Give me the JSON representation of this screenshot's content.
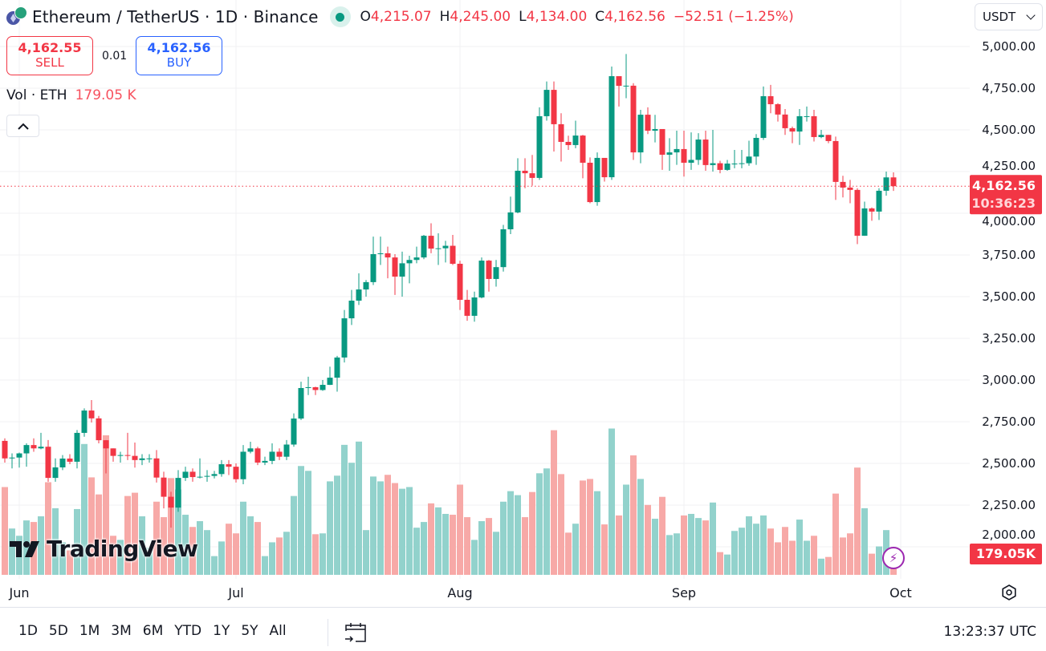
{
  "header": {
    "title": "Ethereum / TetherUS · 1D · Binance",
    "symbol_icon": "eth-usdt-icon",
    "status_icon": "market-open-dot",
    "ohlc": [
      {
        "key": "O",
        "value": "4,215.07"
      },
      {
        "key": "H",
        "value": "4,245.00"
      },
      {
        "key": "L",
        "value": "4,134.00"
      },
      {
        "key": "C",
        "value": "4,162.56"
      }
    ],
    "change": "−52.51 (−1.25%)"
  },
  "trade": {
    "sell_price": "4,162.55",
    "sell_label": "SELL",
    "spread": "0.01",
    "buy_price": "4,162.56",
    "buy_label": "BUY"
  },
  "volume_legend": {
    "label": "Vol · ETH",
    "value": "179.05 K"
  },
  "currency_button": "USDT",
  "watermark": "TradingView",
  "bottom_bar": {
    "ranges": [
      "1D",
      "5D",
      "1M",
      "3M",
      "6M",
      "YTD",
      "1Y",
      "5Y",
      "All"
    ],
    "time": "13:23:37 UTC"
  },
  "colors": {
    "up": "#089981",
    "down": "#f23645",
    "vol_up": "#92d2cc",
    "vol_down": "#f7a9a7",
    "alert": "#9c27b0"
  },
  "chart_data": {
    "type": "candlestick",
    "title": "",
    "interval": "1D",
    "ylim": [
      1832,
      5279
    ],
    "grid": true,
    "y_ticks": [
      {
        "value": 5000,
        "label": "5,000.00"
      },
      {
        "value": 4750,
        "label": "4,750.00"
      },
      {
        "value": 4500,
        "label": "4,500.00"
      },
      {
        "value": 4250,
        "label": "4,250.00"
      },
      {
        "value": 4000,
        "label": "4,000.00"
      },
      {
        "value": 3750,
        "label": "3,750.00"
      },
      {
        "value": 3500,
        "label": "3,500.00"
      },
      {
        "value": 3250,
        "label": "3,250.00"
      },
      {
        "value": 3000,
        "label": "3,000.00"
      },
      {
        "value": 2750,
        "label": "2,750.00"
      },
      {
        "value": 2500,
        "label": "2,500.00"
      },
      {
        "value": 2250,
        "label": "2,250.00"
      },
      {
        "value": 2000,
        "label": "2,000.00"
      }
    ],
    "x_ticks": [
      {
        "candle": 2,
        "label": "Jun"
      },
      {
        "candle": 32,
        "label": "Jul"
      },
      {
        "candle": 63,
        "label": "Aug"
      },
      {
        "candle": 94,
        "label": "Sep"
      },
      {
        "candle": 124,
        "label": "Oct"
      }
    ],
    "last_price": {
      "value": 4162.56,
      "label": "4,162.56",
      "countdown": "10:36:23"
    },
    "last_volume": {
      "value": 179.05,
      "label": "179.05K"
    },
    "volume_unit": "K ETH",
    "candles_format": [
      "open",
      "high",
      "low",
      "close",
      "volume"
    ],
    "candles": [
      [
        2635,
        2650,
        2505,
        2530,
        726
      ],
      [
        2530,
        2560,
        2470,
        2535,
        383
      ],
      [
        2535,
        2565,
        2475,
        2560,
        323
      ],
      [
        2560,
        2620,
        2480,
        2610,
        450
      ],
      [
        2610,
        2650,
        2570,
        2590,
        437
      ],
      [
        2590,
        2683,
        2585,
        2600,
        484
      ],
      [
        2600,
        2640,
        2390,
        2413,
        766
      ],
      [
        2413,
        2530,
        2390,
        2476,
        551
      ],
      [
        2476,
        2550,
        2460,
        2529,
        269
      ],
      [
        2529,
        2555,
        2495,
        2510,
        202
      ],
      [
        2510,
        2700,
        2470,
        2683,
        544
      ],
      [
        2683,
        2830,
        2660,
        2817,
        1082
      ],
      [
        2817,
        2880,
        2745,
        2770,
        806
      ],
      [
        2770,
        2785,
        2620,
        2639,
        665
      ],
      [
        2639,
        2640,
        2440,
        2590,
        1154
      ],
      [
        2590,
        2590,
        2510,
        2545,
        323
      ],
      [
        2545,
        2570,
        2505,
        2550,
        289
      ],
      [
        2550,
        2683,
        2520,
        2545,
        652
      ],
      [
        2545,
        2625,
        2475,
        2520,
        679
      ],
      [
        2520,
        2555,
        2490,
        2530,
        484
      ],
      [
        2530,
        2555,
        2505,
        2530,
        224
      ],
      [
        2530,
        2580,
        2385,
        2415,
        605
      ],
      [
        2415,
        2450,
        2230,
        2300,
        477
      ],
      [
        2300,
        2330,
        2115,
        2235,
        800
      ],
      [
        2235,
        2460,
        2210,
        2413,
        706
      ],
      [
        2413,
        2480,
        2395,
        2450,
        497
      ],
      [
        2450,
        2470,
        2390,
        2418,
        396
      ],
      [
        2418,
        2530,
        2410,
        2420,
        444
      ],
      [
        2420,
        2460,
        2390,
        2425,
        370
      ],
      [
        2425,
        2455,
        2410,
        2436,
        155
      ],
      [
        2436,
        2520,
        2420,
        2495,
        276
      ],
      [
        2495,
        2520,
        2430,
        2480,
        423
      ],
      [
        2480,
        2500,
        2385,
        2405,
        343
      ],
      [
        2405,
        2610,
        2375,
        2570,
        605
      ],
      [
        2570,
        2630,
        2560,
        2590,
        484
      ],
      [
        2590,
        2600,
        2490,
        2505,
        437
      ],
      [
        2505,
        2540,
        2490,
        2515,
        155
      ],
      [
        2515,
        2620,
        2495,
        2570,
        269
      ],
      [
        2570,
        2590,
        2520,
        2540,
        309
      ],
      [
        2540,
        2640,
        2520,
        2613,
        356
      ],
      [
        2613,
        2800,
        2600,
        2769,
        652
      ],
      [
        2769,
        2990,
        2760,
        2952,
        900
      ],
      [
        2952,
        3020,
        2910,
        2957,
        860
      ],
      [
        2957,
        2960,
        2910,
        2940,
        336
      ],
      [
        2940,
        3000,
        2935,
        2971,
        343
      ],
      [
        2971,
        3080,
        2970,
        3014,
        773
      ],
      [
        3014,
        3145,
        2930,
        3135,
        820
      ],
      [
        3135,
        3420,
        3105,
        3370,
        1075
      ],
      [
        3370,
        3540,
        3330,
        3476,
        927
      ],
      [
        3476,
        3640,
        3450,
        3543,
        1102
      ],
      [
        3543,
        3600,
        3500,
        3587,
        370
      ],
      [
        3587,
        3860,
        3570,
        3755,
        813
      ],
      [
        3755,
        3860,
        3690,
        3760,
        773
      ],
      [
        3760,
        3800,
        3610,
        3735,
        827
      ],
      [
        3735,
        3755,
        3510,
        3620,
        759
      ],
      [
        3620,
        3770,
        3500,
        3700,
        712
      ],
      [
        3700,
        3745,
        3580,
        3720,
        726
      ],
      [
        3720,
        3800,
        3700,
        3735,
        390
      ],
      [
        3735,
        3870,
        3725,
        3865,
        437
      ],
      [
        3865,
        3940,
        3760,
        3788,
        591
      ],
      [
        3788,
        3880,
        3690,
        3790,
        558
      ],
      [
        3790,
        3835,
        3705,
        3805,
        504
      ],
      [
        3805,
        3870,
        3690,
        3697,
        497
      ],
      [
        3697,
        3715,
        3420,
        3481,
        746
      ],
      [
        3481,
        3540,
        3355,
        3385,
        477
      ],
      [
        3385,
        3530,
        3350,
        3495,
        289
      ],
      [
        3495,
        3735,
        3490,
        3716,
        444
      ],
      [
        3716,
        3720,
        3530,
        3606,
        470
      ],
      [
        3606,
        3720,
        3560,
        3677,
        356
      ],
      [
        3677,
        3930,
        3650,
        3904,
        605
      ],
      [
        3904,
        4100,
        3875,
        4005,
        692
      ],
      [
        4005,
        4330,
        4000,
        4255,
        659
      ],
      [
        4255,
        4330,
        4150,
        4240,
        477
      ],
      [
        4240,
        4350,
        4165,
        4212,
        685
      ],
      [
        4212,
        4635,
        4200,
        4582,
        840
      ],
      [
        4582,
        4790,
        4555,
        4740,
        880
      ],
      [
        4740,
        4790,
        4370,
        4534,
        1196
      ],
      [
        4534,
        4600,
        4310,
        4428,
        833
      ],
      [
        4428,
        4465,
        4380,
        4409,
        349
      ],
      [
        4409,
        4555,
        4390,
        4466,
        423
      ],
      [
        4466,
        4470,
        4210,
        4303,
        780
      ],
      [
        4303,
        4335,
        4060,
        4067,
        793
      ],
      [
        4067,
        4365,
        4045,
        4332,
        692
      ],
      [
        4332,
        4332,
        4190,
        4216,
        417
      ],
      [
        4216,
        4880,
        4200,
        4822,
        1210
      ],
      [
        4822,
        4822,
        4640,
        4764,
        491
      ],
      [
        4764,
        4955,
        4690,
        4765,
        746
      ],
      [
        4765,
        4780,
        4320,
        4365,
        988
      ],
      [
        4365,
        4620,
        4300,
        4591,
        793
      ],
      [
        4591,
        4635,
        4475,
        4495,
        578
      ],
      [
        4495,
        4590,
        4425,
        4505,
        464
      ],
      [
        4505,
        4505,
        4260,
        4351,
        645
      ],
      [
        4351,
        4450,
        4255,
        4365,
        329
      ],
      [
        4365,
        4495,
        4290,
        4385,
        343
      ],
      [
        4385,
        4495,
        4220,
        4303,
        491
      ],
      [
        4303,
        4485,
        4260,
        4320,
        504
      ],
      [
        4320,
        4480,
        4290,
        4442,
        470
      ],
      [
        4442,
        4495,
        4255,
        4289,
        450
      ],
      [
        4289,
        4500,
        4250,
        4300,
        598
      ],
      [
        4300,
        4315,
        4240,
        4260,
        188
      ],
      [
        4260,
        4320,
        4255,
        4298,
        168
      ],
      [
        4298,
        4380,
        4270,
        4298,
        363
      ],
      [
        4298,
        4380,
        4270,
        4300,
        390
      ],
      [
        4300,
        4435,
        4285,
        4340,
        484
      ],
      [
        4340,
        4475,
        4290,
        4452,
        423
      ],
      [
        4452,
        4760,
        4440,
        4702,
        491
      ],
      [
        4702,
        4770,
        4600,
        4654,
        383
      ],
      [
        4654,
        4660,
        4550,
        4592,
        269
      ],
      [
        4592,
        4625,
        4470,
        4510,
        396
      ],
      [
        4510,
        4520,
        4420,
        4490,
        282
      ],
      [
        4490,
        4625,
        4410,
        4582,
        457
      ],
      [
        4582,
        4640,
        4550,
        4582,
        282
      ],
      [
        4582,
        4620,
        4430,
        4457,
        323
      ],
      [
        4457,
        4500,
        4450,
        4470,
        134
      ],
      [
        4470,
        4470,
        4420,
        4433,
        148
      ],
      [
        4433,
        4460,
        4080,
        4188,
        672
      ],
      [
        4188,
        4225,
        4095,
        4154,
        309
      ],
      [
        4154,
        4200,
        4060,
        4140,
        343
      ],
      [
        4140,
        4150,
        3815,
        3865,
        887
      ],
      [
        3865,
        4070,
        3865,
        4029,
        551
      ],
      [
        4029,
        4035,
        3955,
        4010,
        175
      ],
      [
        4010,
        4150,
        3960,
        4135,
        235
      ],
      [
        4135,
        4250,
        4105,
        4215.07,
        370
      ],
      [
        4215.07,
        4245,
        4134,
        4162.56,
        179.05
      ]
    ]
  }
}
